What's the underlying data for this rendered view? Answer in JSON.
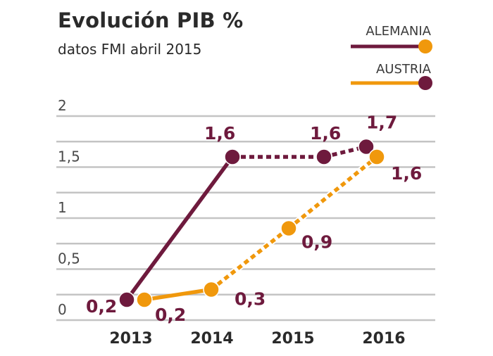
{
  "title": "Evolución PIB %",
  "subtitle": "datos FMI abril 2015",
  "colors": {
    "alemania": "#6e1a3d",
    "austria": "#f0980c",
    "grid": "#c4c4c4"
  },
  "chart_data": {
    "type": "line",
    "title": "Evolución PIB %",
    "subtitle": "datos FMI abril 2015",
    "x": [
      "2013",
      "2014",
      "2015",
      "2016"
    ],
    "ylim": [
      0,
      2
    ],
    "y_ticks": [
      "0",
      "0,5",
      "1",
      "1,5",
      "2"
    ],
    "y_tick_values": [
      0,
      0.5,
      1,
      1.5,
      2
    ],
    "grid": true,
    "legend_position": "top-right",
    "series": [
      {
        "name": "ALEMANIA",
        "color": "#6e1a3d",
        "values": [
          0.2,
          1.6,
          1.6,
          1.7
        ],
        "labels": [
          "0,2",
          "1,6",
          "1,6",
          "1,7"
        ],
        "dashed_after": "2014"
      },
      {
        "name": "AUSTRIA",
        "color": "#f0980c",
        "values": [
          0.2,
          0.3,
          0.9,
          1.6
        ],
        "labels": [
          "0,2",
          "0,3",
          "0,9",
          "1,6"
        ],
        "dashed_after": "2014"
      }
    ]
  }
}
